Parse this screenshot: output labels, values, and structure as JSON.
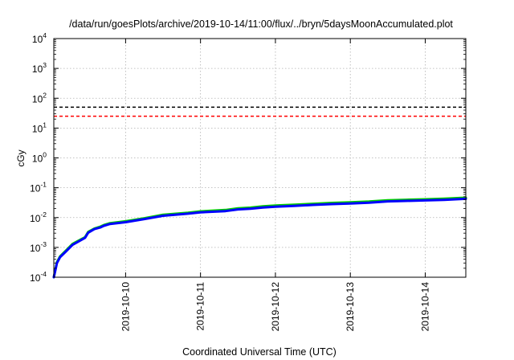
{
  "chart_data": {
    "type": "line",
    "title": "/data/run/goesPlots/archive/2019-10-14/11:00/flux/../bryn/5daysMoonAccumulated.plot",
    "xlabel": "Coordinated Universal Time (UTC)",
    "ylabel": "cGy",
    "y_scale": "log",
    "ylim": [
      0.0001,
      10000
    ],
    "y_ticks": [
      {
        "value": 0.0001,
        "base": "10",
        "exp": "-4"
      },
      {
        "value": 0.001,
        "base": "10",
        "exp": "-3"
      },
      {
        "value": 0.01,
        "base": "10",
        "exp": "-2"
      },
      {
        "value": 0.1,
        "base": "10",
        "exp": "-1"
      },
      {
        "value": 1,
        "base": "10",
        "exp": "0"
      },
      {
        "value": 10,
        "base": "10",
        "exp": "1"
      },
      {
        "value": 100,
        "base": "10",
        "exp": "2"
      },
      {
        "value": 1000,
        "base": "10",
        "exp": "3"
      },
      {
        "value": 10000,
        "base": "10",
        "exp": "4"
      }
    ],
    "xlim": [
      "2019-10-09T01:00",
      "2019-10-14T13:00"
    ],
    "x_ticks": [
      "2019-10-10",
      "2019-10-11",
      "2019-10-12",
      "2019-10-13",
      "2019-10-14"
    ],
    "grid": true,
    "thresholds": [
      {
        "value": 50,
        "color": "#000000",
        "style": "dashed"
      },
      {
        "value": 25,
        "color": "#ff0000",
        "style": "dashed"
      }
    ],
    "series": [
      {
        "color": "#00cc00",
        "points": [
          [
            "2019-10-09T01:00",
            0.0001
          ],
          [
            "2019-10-09T02:00",
            0.00032
          ],
          [
            "2019-10-09T03:00",
            0.0005
          ],
          [
            "2019-10-09T05:00",
            0.0008
          ],
          [
            "2019-10-09T07:00",
            0.0013
          ],
          [
            "2019-10-09T09:00",
            0.0017
          ],
          [
            "2019-10-09T11:00",
            0.0022
          ],
          [
            "2019-10-09T12:00",
            0.0033
          ],
          [
            "2019-10-09T14:00",
            0.0043
          ],
          [
            "2019-10-09T16:00",
            0.005
          ],
          [
            "2019-10-09T17:00",
            0.0056
          ],
          [
            "2019-10-09T19:00",
            0.0065
          ],
          [
            "2019-10-10T00:00",
            0.0075
          ],
          [
            "2019-10-10T06:00",
            0.0095
          ],
          [
            "2019-10-10T12:00",
            0.0125
          ],
          [
            "2019-10-10T20:00",
            0.0145
          ],
          [
            "2019-10-11T00:00",
            0.0162
          ],
          [
            "2019-10-11T08:00",
            0.018
          ],
          [
            "2019-10-11T12:00",
            0.0205
          ],
          [
            "2019-10-11T16:00",
            0.0215
          ],
          [
            "2019-10-11T20:00",
            0.0238
          ],
          [
            "2019-10-12T00:00",
            0.0252
          ],
          [
            "2019-10-12T06:00",
            0.027
          ],
          [
            "2019-10-12T12:00",
            0.029
          ],
          [
            "2019-10-12T18:00",
            0.031
          ],
          [
            "2019-10-13T00:00",
            0.0325
          ],
          [
            "2019-10-13T06:00",
            0.0345
          ],
          [
            "2019-10-13T12:00",
            0.038
          ],
          [
            "2019-10-13T18:00",
            0.0395
          ],
          [
            "2019-10-14T00:00",
            0.041
          ],
          [
            "2019-10-14T06:00",
            0.043
          ],
          [
            "2019-10-14T13:00",
            0.0465
          ]
        ]
      },
      {
        "color": "#0000ff",
        "points": [
          [
            "2019-10-09T01:00",
            0.0001
          ],
          [
            "2019-10-09T02:00",
            0.0003
          ],
          [
            "2019-10-09T03:00",
            0.00047
          ],
          [
            "2019-10-09T05:00",
            0.00075
          ],
          [
            "2019-10-09T07:00",
            0.00122
          ],
          [
            "2019-10-09T09:00",
            0.0016
          ],
          [
            "2019-10-09T11:00",
            0.0021
          ],
          [
            "2019-10-09T12:00",
            0.0031
          ],
          [
            "2019-10-09T14:00",
            0.0041
          ],
          [
            "2019-10-09T16:00",
            0.0047
          ],
          [
            "2019-10-09T17:00",
            0.0053
          ],
          [
            "2019-10-09T19:00",
            0.0061
          ],
          [
            "2019-10-10T00:00",
            0.007
          ],
          [
            "2019-10-10T06:00",
            0.0089
          ],
          [
            "2019-10-10T12:00",
            0.0115
          ],
          [
            "2019-10-10T20:00",
            0.0135
          ],
          [
            "2019-10-11T00:00",
            0.015
          ],
          [
            "2019-10-11T08:00",
            0.0165
          ],
          [
            "2019-10-11T12:00",
            0.0188
          ],
          [
            "2019-10-11T16:00",
            0.0198
          ],
          [
            "2019-10-11T20:00",
            0.0218
          ],
          [
            "2019-10-12T00:00",
            0.023
          ],
          [
            "2019-10-12T06:00",
            0.0245
          ],
          [
            "2019-10-12T12:00",
            0.0265
          ],
          [
            "2019-10-12T18:00",
            0.0282
          ],
          [
            "2019-10-13T00:00",
            0.0295
          ],
          [
            "2019-10-13T06:00",
            0.0315
          ],
          [
            "2019-10-13T12:00",
            0.035
          ],
          [
            "2019-10-13T18:00",
            0.0362
          ],
          [
            "2019-10-14T00:00",
            0.0375
          ],
          [
            "2019-10-14T06:00",
            0.0392
          ],
          [
            "2019-10-14T13:00",
            0.0425
          ]
        ]
      }
    ]
  }
}
